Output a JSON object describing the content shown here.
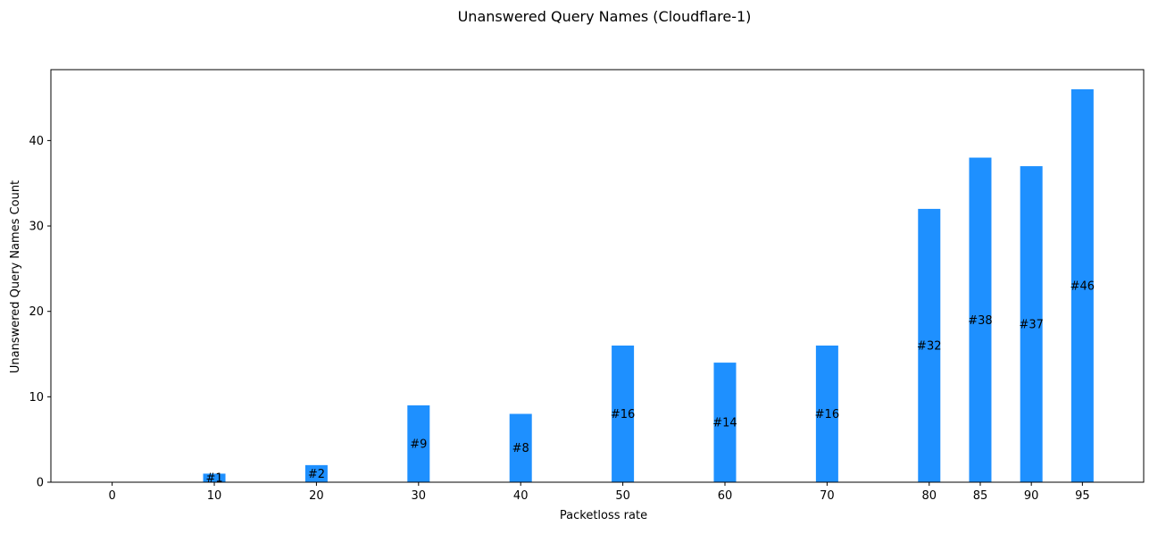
{
  "chart_data": {
    "type": "bar",
    "title": "Unanswered Query Names (Cloudflare-1)",
    "xlabel": "Packetloss rate",
    "ylabel": "Unanswered Query Names Count",
    "x": [
      0,
      10,
      20,
      30,
      40,
      50,
      60,
      70,
      80,
      85,
      90,
      95
    ],
    "values": [
      0,
      1,
      2,
      9,
      8,
      16,
      14,
      16,
      32,
      38,
      37,
      46
    ],
    "data_labels": [
      "",
      "#1",
      "#2",
      "#9",
      "#8",
      "#16",
      "#14",
      "#16",
      "#32",
      "#38",
      "#37",
      "#46"
    ],
    "x_ticks": [
      "0",
      "10",
      "20",
      "30",
      "40",
      "50",
      "60",
      "70",
      "80",
      "85",
      "90",
      "95"
    ],
    "y_ticks": [
      "0",
      "10",
      "20",
      "30",
      "40"
    ],
    "xlim": [
      -6,
      101
    ],
    "ylim": [
      0,
      48.3
    ],
    "bar_color": "#1e90ff",
    "grid": false,
    "legend": "none"
  }
}
